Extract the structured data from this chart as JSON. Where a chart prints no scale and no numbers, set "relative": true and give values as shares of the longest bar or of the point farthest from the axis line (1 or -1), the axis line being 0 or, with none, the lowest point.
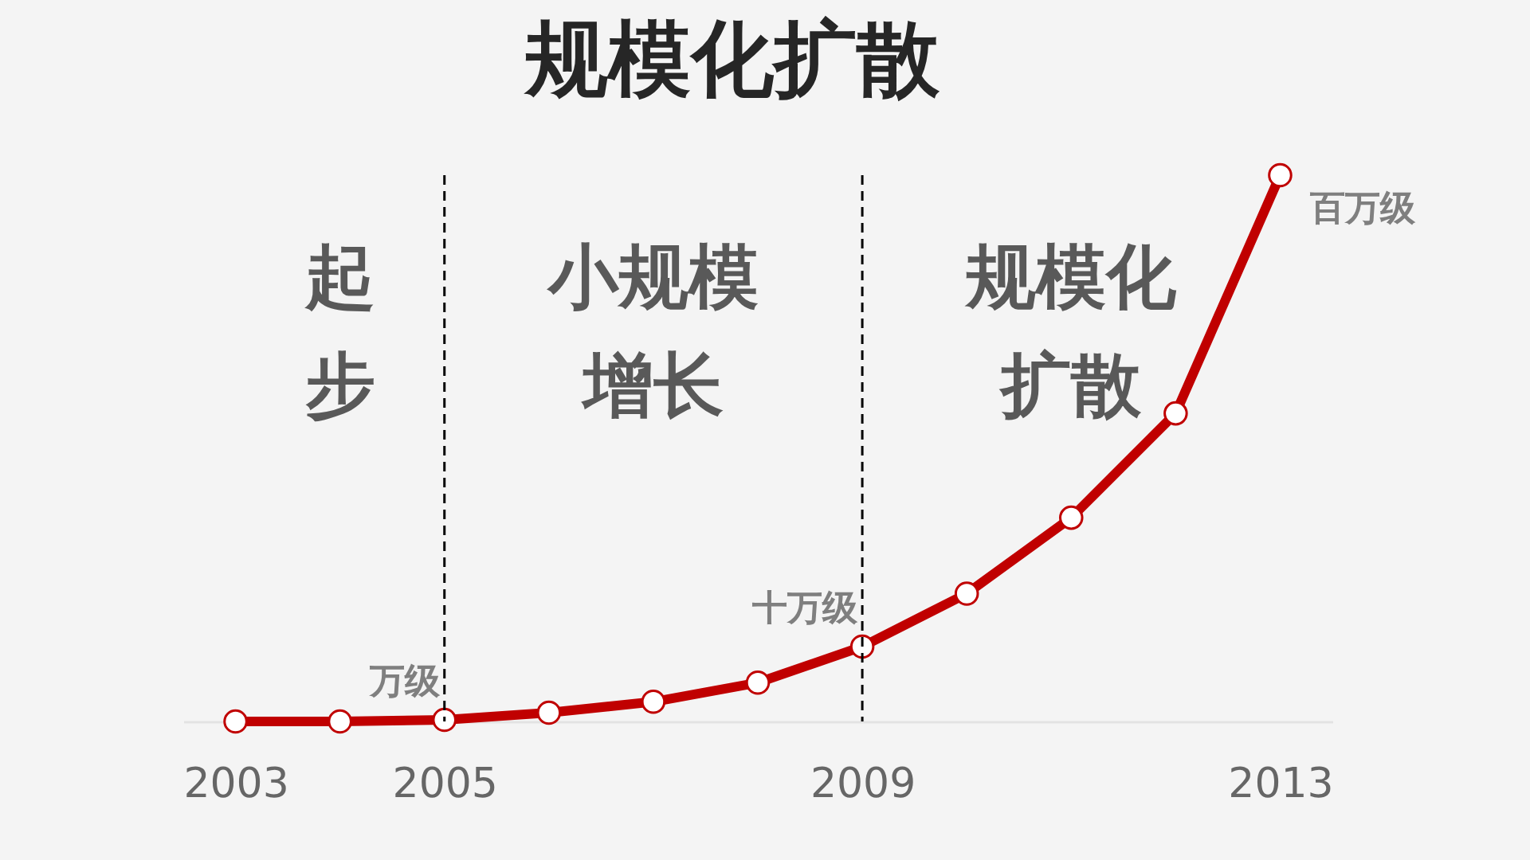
{
  "chart_data": {
    "type": "line",
    "title": "规模化扩散",
    "relative": true,
    "x": [
      2003,
      2004,
      2005,
      2006,
      2007,
      2008,
      2009,
      2010,
      2011,
      2012,
      2013
    ],
    "xlim": [
      2002.5,
      2013.5
    ],
    "xticks": [
      2003,
      2005,
      2009,
      2013
    ],
    "series": [
      {
        "color": "#c00000",
        "values": [
          0,
          0,
          0.003,
          0.016,
          0.036,
          0.071,
          0.137,
          0.234,
          0.373,
          0.564,
          1
        ]
      }
    ],
    "marker": "circle",
    "line_style": "solid",
    "ref_lines": [
      {
        "axis": "x",
        "value": 2005,
        "color": "#000000",
        "line_style": "dashed"
      },
      {
        "axis": "x",
        "value": 2009,
        "color": "#000000",
        "line_style": "dashed"
      }
    ],
    "annotations": [
      "起步",
      "小规模增长",
      "规模化扩散",
      {
        "text": "万级",
        "x": 2005,
        "y": 0.003
      },
      {
        "text": "十万级",
        "x": 2009,
        "y": 0.137
      },
      {
        "text": "百万级",
        "x": 2013,
        "y": 1
      }
    ]
  }
}
